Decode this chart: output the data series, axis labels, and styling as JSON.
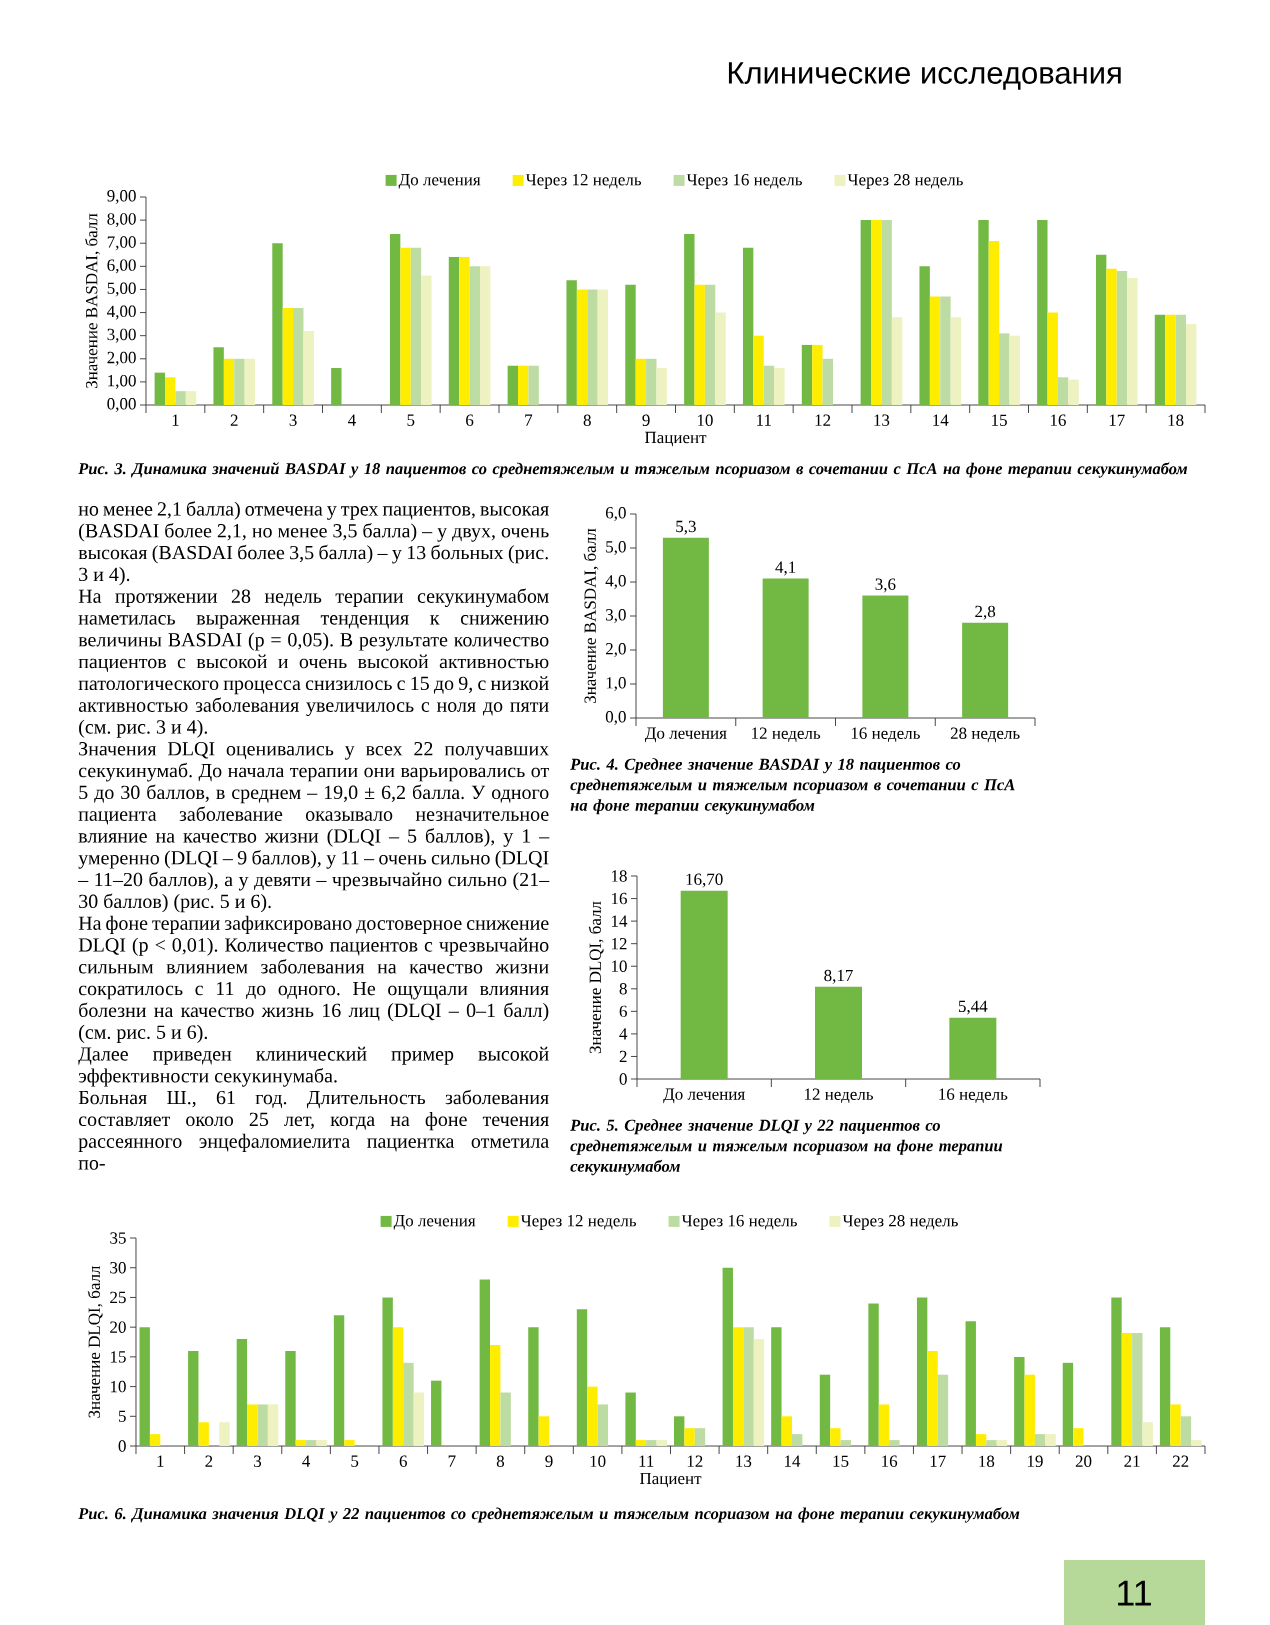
{
  "chart_data": [
    {
      "type": "bar",
      "title": "Рис. 3. Динамика значений BASDAI у 18 пациентов со среднетяжелым и тяжелым псориазом в сочетании с ПсА на фоне терапии секукинумабом",
      "xlabel": "Пациент",
      "ylabel": "Значение BASDAI, балл",
      "annotations": [
        "Клинические исследования"
      ],
      "categories": [
        "1",
        "2",
        "3",
        "4",
        "5",
        "6",
        "7",
        "8",
        "9",
        "10",
        "11",
        "12",
        "13",
        "14",
        "15",
        "16",
        "17",
        "18"
      ],
      "series": [
        {
          "name": "До лечения",
          "color": "#72b944",
          "values": [
            1.4,
            2.5,
            7.0,
            1.6,
            7.4,
            6.4,
            1.7,
            5.4,
            5.2,
            7.4,
            6.8,
            2.6,
            8.0,
            6.0,
            8.0,
            8.0,
            6.5,
            3.9
          ]
        },
        {
          "name": "Через 12 недель",
          "color": "#ffed00",
          "values": [
            1.2,
            2.0,
            4.2,
            null,
            6.8,
            6.4,
            1.7,
            5.0,
            2.0,
            5.2,
            3.0,
            2.6,
            8.0,
            4.7,
            7.1,
            4.0,
            5.9,
            3.9
          ]
        },
        {
          "name": "Через 16 недель",
          "color": "#bddca3",
          "values": [
            0.6,
            2.0,
            4.2,
            null,
            6.8,
            6.0,
            1.7,
            5.0,
            2.0,
            5.2,
            1.7,
            2.0,
            8.0,
            4.7,
            3.1,
            1.2,
            5.8,
            3.9
          ]
        },
        {
          "name": "Через 28 недель",
          "color": "#eef1c0",
          "values": [
            0.6,
            2.0,
            3.2,
            null,
            5.6,
            6.0,
            null,
            5.0,
            1.6,
            4.0,
            1.6,
            null,
            3.8,
            3.8,
            3.0,
            1.1,
            5.5,
            3.5
          ]
        }
      ],
      "ylim": [
        0,
        9
      ],
      "yticks": [
        {
          "value": 0,
          "label": "0,00"
        },
        {
          "value": 1,
          "label": "1,00"
        },
        {
          "value": 2,
          "label": "2,00"
        },
        {
          "value": 3,
          "label": "3,00"
        },
        {
          "value": 4,
          "label": "4,00"
        },
        {
          "value": 5,
          "label": "5,00"
        },
        {
          "value": 6,
          "label": "6,00"
        },
        {
          "value": 7,
          "label": "7,00"
        },
        {
          "value": 8,
          "label": "8,00"
        },
        {
          "value": 9,
          "label": "9,00"
        }
      ],
      "legend": "top"
    },
    {
      "type": "other",
      "annotations": [
        "но менее 2,1 балла) отмечена у трех пациентов, высокая (BASDAI более 2,1, но менее 3,5 балла) – у двух, очень высокая (BASDAI более 3,5 балла) – у 13 больных (рис. 3 и 4).",
        "На протяжении 28 недель терапии секукинумабом наметилась выраженная тенденция к снижению величины BASDAI (p = 0,05). В результате количество пациентов с высокой и очень высокой активностью патологического процесса снизилось с 15 до 9, с низкой активностью заболевания увеличилось с ноля до пяти (см. рис. 3 и 4).",
        "Значения DLQI оценивались у всех 22 получавших секукинумаб. До начала терапии они варьировались от 5 до 30 баллов, в среднем – 19,0 ± 6,2 балла. У одного пациента заболевание оказывало незначительное влияние на качество жизни (DLQI – 5 баллов), у 1 – умеренно (DLQI – 9 баллов), у 11 – очень сильно (DLQI – 11–20 баллов), а у девяти – чрезвычайно сильно (21–30 баллов) (рис. 5 и 6).",
        "На фоне терапии зафиксировано достоверное снижение DLQI (p < 0,01). Количество пациентов с чрезвычайно сильным влиянием заболевания на качество жизни сократилось с 11 до одного. Не ощущали влияния болезни на качество жизнь 16 лиц (DLQI – 0–1 балл) (см. рис. 5 и 6).",
        "Далее приведен клинический пример высокой эффективности секукинумаба.",
        "Больная Ш., 61 год. Длительность заболевания составляет около 25 лет, когда на фоне течения рассеянного энцефаломиелита пациентка отметила по-"
      ]
    },
    {
      "type": "bar",
      "title": "Рис. 4. Среднее значение BASDAI у 18 пациентов со среднетяжелым и тяжелым псориазом в сочетании с ПсА на фоне терапии секукинумабом",
      "ylabel": "Значение BASDAI, балл",
      "categories": [
        "До лечения",
        "12 недель",
        "16 недель",
        "28 недель"
      ],
      "values": [
        5.3,
        4.1,
        3.6,
        2.8
      ],
      "value_labels": [
        "5,3",
        "4,1",
        "3,6",
        "2,8"
      ],
      "color": "#72b944",
      "ylim": [
        0,
        6
      ],
      "yticks": [
        {
          "value": 0,
          "label": "0,0"
        },
        {
          "value": 1,
          "label": "1,0"
        },
        {
          "value": 2,
          "label": "2,0"
        },
        {
          "value": 3,
          "label": "3,0"
        },
        {
          "value": 4,
          "label": "4,0"
        },
        {
          "value": 5,
          "label": "5,0"
        },
        {
          "value": 6,
          "label": "6,0"
        }
      ]
    },
    {
      "type": "bar",
      "title": "Рис. 5. Среднее значение DLQI у 22 пациентов со среднетяжелым и тяжелым псориазом на фоне терапии секукинумабом",
      "ylabel": "Значение DLQI, балл",
      "categories": [
        "До лечения",
        "12 недель",
        "16 недель"
      ],
      "values": [
        16.7,
        8.17,
        5.44
      ],
      "value_labels": [
        "16,70",
        "8,17",
        "5,44"
      ],
      "color": "#72b944",
      "ylim": [
        0,
        18
      ],
      "yticks": [
        0,
        2,
        4,
        6,
        8,
        10,
        12,
        14,
        16,
        18
      ]
    },
    {
      "type": "bar",
      "title": "Рис. 6. Динамика значения DLQI у 22 пациентов со среднетяжелым и тяжелым псориазом на фоне терапии секукинумабом",
      "xlabel": "Пациент",
      "ylabel": "Значение DLQI, балл",
      "annotations": [
        "11"
      ],
      "categories": [
        "1",
        "2",
        "3",
        "4",
        "5",
        "6",
        "7",
        "8",
        "9",
        "10",
        "11",
        "12",
        "13",
        "14",
        "15",
        "16",
        "17",
        "18",
        "19",
        "20",
        "21",
        "22"
      ],
      "series": [
        {
          "name": "До лечения",
          "color": "#72b944",
          "values": [
            20,
            16,
            18,
            16,
            22,
            25,
            11,
            28,
            20,
            23,
            9,
            5,
            30,
            20,
            12,
            24,
            25,
            21,
            15,
            14,
            25,
            20
          ]
        },
        {
          "name": "Через 12 недель",
          "color": "#ffed00",
          "values": [
            2,
            4,
            7,
            1,
            1,
            20,
            null,
            17,
            5,
            10,
            1,
            3,
            20,
            5,
            3,
            7,
            16,
            2,
            12,
            3,
            19,
            7
          ]
        },
        {
          "name": "Через 16 недель",
          "color": "#bddca3",
          "values": [
            null,
            null,
            7,
            1,
            null,
            14,
            null,
            9,
            null,
            7,
            1,
            3,
            20,
            2,
            1,
            1,
            12,
            1,
            2,
            null,
            19,
            5
          ]
        },
        {
          "name": "Через 28 недель",
          "color": "#eef1c0",
          "values": [
            null,
            4,
            7,
            1,
            null,
            9,
            null,
            null,
            null,
            null,
            1,
            null,
            18,
            null,
            null,
            null,
            null,
            1,
            2,
            null,
            4,
            1
          ]
        }
      ],
      "ylim": [
        0,
        35
      ],
      "yticks": [
        0,
        5,
        10,
        15,
        20,
        25,
        30,
        35
      ],
      "legend": "top"
    }
  ]
}
